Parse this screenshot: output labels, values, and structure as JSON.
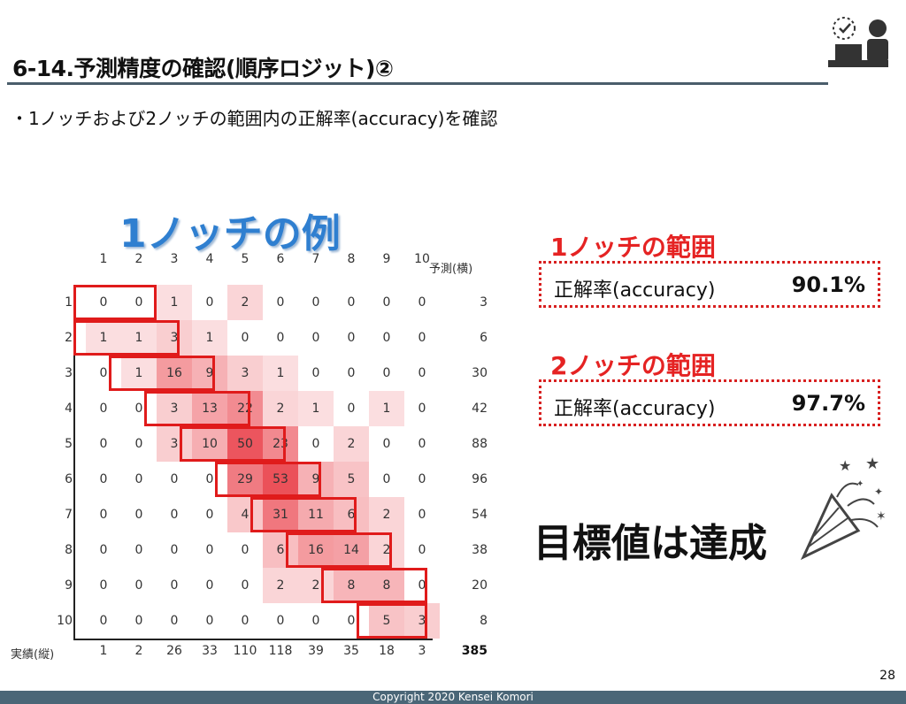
{
  "title": "6-14.予測精度の確認(順序ロジット)②",
  "bullet": "・1ノッチおよび2ノッチの範囲内の正解率(accuracy)を確認",
  "example_heading": "1ノッチの例",
  "matrix": {
    "pred_header": "予測(横)",
    "actual_header": "実績(縦)",
    "col_labels": [
      "1",
      "2",
      "3",
      "4",
      "5",
      "6",
      "7",
      "8",
      "9",
      "10"
    ],
    "row_labels": [
      "1",
      "2",
      "3",
      "4",
      "5",
      "6",
      "7",
      "8",
      "9",
      "10"
    ],
    "cells": [
      [
        0,
        0,
        1,
        0,
        2,
        0,
        0,
        0,
        0,
        0
      ],
      [
        1,
        1,
        3,
        1,
        0,
        0,
        0,
        0,
        0,
        0
      ],
      [
        0,
        1,
        16,
        9,
        3,
        1,
        0,
        0,
        0,
        0
      ],
      [
        0,
        0,
        3,
        13,
        22,
        2,
        1,
        0,
        1,
        0
      ],
      [
        0,
        0,
        3,
        10,
        50,
        23,
        0,
        2,
        0,
        0
      ],
      [
        0,
        0,
        0,
        0,
        29,
        53,
        9,
        5,
        0,
        0
      ],
      [
        0,
        0,
        0,
        0,
        4,
        31,
        11,
        6,
        2,
        0
      ],
      [
        0,
        0,
        0,
        0,
        0,
        6,
        16,
        14,
        2,
        0
      ],
      [
        0,
        0,
        0,
        0,
        0,
        2,
        2,
        8,
        8,
        0
      ],
      [
        0,
        0,
        0,
        0,
        0,
        0,
        0,
        0,
        5,
        3
      ]
    ],
    "row_totals": [
      "3",
      "6",
      "30",
      "42",
      "88",
      "96",
      "54",
      "38",
      "20",
      "8"
    ],
    "col_totals": [
      "1",
      "2",
      "26",
      "33",
      "110",
      "118",
      "39",
      "35",
      "18",
      "3"
    ],
    "grand_total": "385"
  },
  "one_notch": {
    "title": "1ノッチの範囲",
    "label": "正解率(accuracy)",
    "value": "90.1%"
  },
  "two_notch": {
    "title": "2ノッチの範囲",
    "label": "正解率(accuracy)",
    "value": "97.7%"
  },
  "goal": "目標値は達成",
  "page_number": "28",
  "footer": "Copyright 2020 Kensei Komori",
  "icons": [
    "person-at-desk-icon",
    "party-popper-icon"
  ],
  "colors": {
    "accent_red": "#e52323",
    "accent_blue": "#2f7fd0",
    "heat_base": "#e8323c",
    "footer_bar": "#4a6677"
  }
}
